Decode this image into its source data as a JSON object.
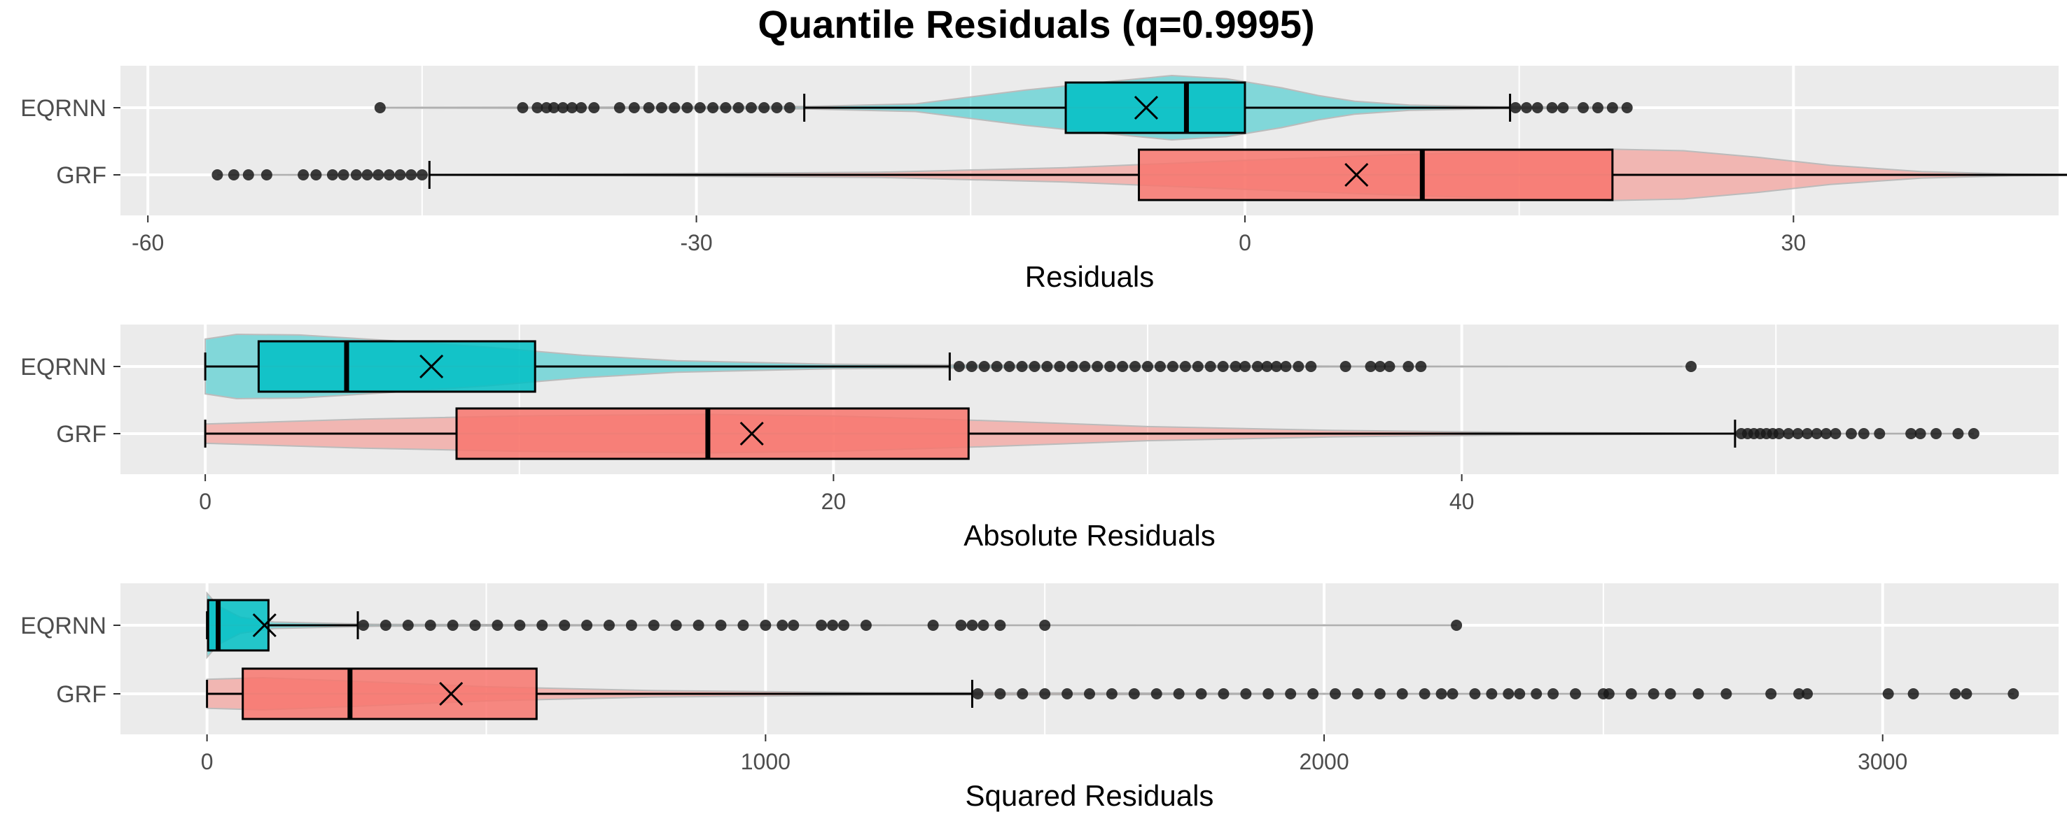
{
  "title": "Quantile Residuals (q=0.9995)",
  "colors": {
    "EQRNN": "#00BFC4",
    "GRF": "#F8766D"
  },
  "chart_data": [
    {
      "type": "box",
      "xlabel": "Residuals",
      "categories": [
        "EQRNN",
        "GRF"
      ],
      "xlim": [
        -61.5,
        44.5
      ],
      "xticks": [
        -60,
        -30,
        0,
        30
      ],
      "minor_ticks": [
        -45,
        -15,
        15,
        45
      ],
      "series": [
        {
          "name": "EQRNN",
          "whisker_low": -24.1,
          "q1": -9.8,
          "median": -3.2,
          "q3": 0.0,
          "whisker_high": 14.5,
          "mean": -5.4,
          "outliers": [
            -47.3,
            -39.5,
            -38.7,
            -38.2,
            -37.8,
            -37.3,
            -36.8,
            -36.3,
            -35.6,
            -34.2,
            -33.4,
            -32.6,
            -31.9,
            -31.2,
            -30.5,
            -29.8,
            -29.1,
            -28.4,
            -27.7,
            -27.0,
            -26.3,
            -25.6,
            -24.9,
            14.8,
            15.4,
            16.0,
            16.8,
            17.4,
            18.5,
            19.3,
            20.1,
            20.9
          ],
          "violin": [
            [
              -47,
              0.01
            ],
            [
              -35,
              0.02
            ],
            [
              -24,
              0.04
            ],
            [
              -18,
              0.12
            ],
            [
              -12,
              0.55
            ],
            [
              -8,
              0.78
            ],
            [
              -4,
              1.0
            ],
            [
              -1,
              0.9
            ],
            [
              2,
              0.62
            ],
            [
              4,
              0.38
            ],
            [
              6,
              0.2
            ],
            [
              9,
              0.08
            ],
            [
              14,
              0.03
            ],
            [
              21,
              0.01
            ]
          ]
        },
        {
          "name": "GRF",
          "whisker_low": -44.6,
          "q1": -5.8,
          "median": 9.7,
          "q3": 20.1,
          "whisker_high": 47.4,
          "mean": 6.1,
          "outliers": [
            -56.2,
            -55.3,
            -54.5,
            -53.5,
            -51.5,
            -50.8,
            -49.9,
            -49.3,
            -48.6,
            -48.0,
            -47.4,
            -46.8,
            -46.2,
            -45.6,
            -45.0
          ],
          "violin": [
            [
              -56,
              0.005
            ],
            [
              -45,
              0.01
            ],
            [
              -35,
              0.03
            ],
            [
              -20,
              0.08
            ],
            [
              -10,
              0.22
            ],
            [
              0,
              0.45
            ],
            [
              8,
              0.62
            ],
            [
              14,
              0.72
            ],
            [
              20,
              0.8
            ],
            [
              24,
              0.75
            ],
            [
              28,
              0.55
            ],
            [
              32,
              0.3
            ],
            [
              37,
              0.1
            ],
            [
              42,
              0.03
            ],
            [
              47,
              0.005
            ]
          ]
        }
      ]
    },
    {
      "type": "box",
      "xlabel": "Absolute Residuals",
      "categories": [
        "EQRNN",
        "GRF"
      ],
      "xlim": [
        -2.7,
        59.0
      ],
      "xticks": [
        0,
        20,
        40
      ],
      "minor_ticks": [
        10,
        30,
        50
      ],
      "series": [
        {
          "name": "EQRNN",
          "whisker_low": 0.0,
          "q1": 1.7,
          "median": 4.5,
          "q3": 10.5,
          "whisker_high": 23.7,
          "mean": 7.2,
          "outliers": [
            24.0,
            24.4,
            24.8,
            25.2,
            25.6,
            26.0,
            26.4,
            26.8,
            27.2,
            27.6,
            28.0,
            28.4,
            28.8,
            29.2,
            29.6,
            30.0,
            30.4,
            30.8,
            31.2,
            31.6,
            32.0,
            32.4,
            32.8,
            33.1,
            33.5,
            33.8,
            34.1,
            34.4,
            34.8,
            35.2,
            36.3,
            37.1,
            37.4,
            37.7,
            38.3,
            38.7,
            47.3
          ],
          "violin": [
            [
              0,
              0.85
            ],
            [
              1,
              1.0
            ],
            [
              3,
              0.98
            ],
            [
              6,
              0.8
            ],
            [
              9,
              0.6
            ],
            [
              12,
              0.35
            ],
            [
              15,
              0.18
            ],
            [
              20,
              0.07
            ],
            [
              28,
              0.03
            ],
            [
              38,
              0.01
            ],
            [
              47,
              0.005
            ]
          ]
        },
        {
          "name": "GRF",
          "whisker_low": 0.0,
          "q1": 8.0,
          "median": 16.0,
          "q3": 24.3,
          "whisker_high": 48.7,
          "mean": 17.4,
          "outliers": [
            48.9,
            49.1,
            49.3,
            49.5,
            49.7,
            49.9,
            50.1,
            50.4,
            50.7,
            51.0,
            51.3,
            51.6,
            51.9,
            52.4,
            52.8,
            53.3,
            54.3,
            54.6,
            55.1,
            55.8,
            56.3
          ],
          "violin": [
            [
              0,
              0.3
            ],
            [
              5,
              0.45
            ],
            [
              10,
              0.55
            ],
            [
              16,
              0.6
            ],
            [
              20,
              0.55
            ],
            [
              25,
              0.4
            ],
            [
              30,
              0.22
            ],
            [
              36,
              0.1
            ],
            [
              42,
              0.04
            ],
            [
              48,
              0.01
            ],
            [
              56,
              0.005
            ]
          ]
        }
      ]
    },
    {
      "type": "box",
      "xlabel": "Squared Residuals",
      "categories": [
        "EQRNN",
        "GRF"
      ],
      "xlim": [
        -155,
        3315
      ],
      "xticks": [
        0,
        1000,
        2000,
        3000
      ],
      "minor_ticks": [
        500,
        1500,
        2500
      ],
      "series": [
        {
          "name": "EQRNN",
          "whisker_low": 0,
          "q1": 2,
          "median": 20,
          "q3": 110,
          "whisker_high": 270,
          "mean": 103,
          "outliers": [
            280,
            320,
            360,
            400,
            440,
            480,
            520,
            560,
            600,
            640,
            680,
            720,
            760,
            800,
            840,
            880,
            920,
            960,
            1000,
            1030,
            1050,
            1100,
            1120,
            1140,
            1180,
            1300,
            1350,
            1370,
            1390,
            1420,
            1500,
            2237
          ],
          "violin": [
            [
              0,
              1.0
            ],
            [
              20,
              0.6
            ],
            [
              60,
              0.25
            ],
            [
              120,
              0.1
            ],
            [
              300,
              0.03
            ],
            [
              800,
              0.01
            ],
            [
              2237,
              0.004
            ]
          ]
        },
        {
          "name": "GRF",
          "whisker_low": 0,
          "q1": 64,
          "median": 256,
          "q3": 590,
          "whisker_high": 1370,
          "mean": 437,
          "outliers": [
            1380,
            1420,
            1460,
            1500,
            1540,
            1580,
            1620,
            1660,
            1700,
            1740,
            1780,
            1820,
            1860,
            1900,
            1940,
            1980,
            2020,
            2060,
            2100,
            2140,
            2180,
            2210,
            2230,
            2270,
            2300,
            2330,
            2350,
            2380,
            2410,
            2450,
            2500,
            2510,
            2550,
            2590,
            2620,
            2670,
            2720,
            2800,
            2850,
            2865,
            3010,
            3055,
            3130,
            3150,
            3234
          ],
          "violin": [
            [
              0,
              0.45
            ],
            [
              100,
              0.5
            ],
            [
              250,
              0.4
            ],
            [
              500,
              0.22
            ],
            [
              800,
              0.1
            ],
            [
              1200,
              0.04
            ],
            [
              2000,
              0.01
            ],
            [
              3234,
              0.004
            ]
          ]
        }
      ]
    }
  ]
}
